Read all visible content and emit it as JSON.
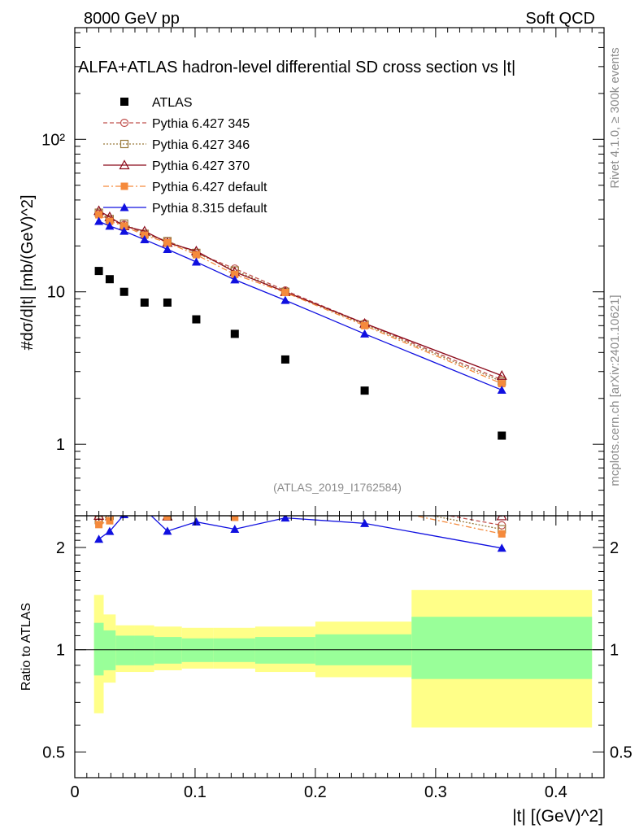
{
  "header": {
    "left": "8000 GeV pp",
    "right": "Soft QCD"
  },
  "side": {
    "rivet": "Rivet 4.1.0, ≥ 300k events",
    "mcplots": "mcplots.cern.ch [arXiv:2401.10621]"
  },
  "chart_data": {
    "type": "scatter",
    "title": "ALFA+ATLAS hadron-level differential SD cross section vs |t|",
    "analysis_tag": "(ATLAS_2019_I1762584)",
    "ylabel_main": "#dσ/d|t| [mb/(GeV)^2]",
    "ylabel_ratio": "Ratio to ATLAS",
    "xlabel": "|t| [(GeV)^2]",
    "xlim": [
      0,
      0.44
    ],
    "ylim_main": [
      0.34,
      540
    ],
    "ylim_ratio": [
      0.42,
      2.48
    ],
    "yscale": "log",
    "x_ticks": [
      "0",
      "0.1",
      "0.2",
      "0.3",
      "0.4"
    ],
    "y_ticks_main": [
      "1",
      "10",
      "10²"
    ],
    "y_ticks_ratio": [
      "0.5",
      "1",
      "2"
    ],
    "x": [
      0.02,
      0.029,
      0.041,
      0.058,
      0.077,
      0.101,
      0.133,
      0.175,
      0.241,
      0.355
    ],
    "data": {
      "name": "ATLAS",
      "values": [
        13.7,
        12.1,
        10.0,
        8.5,
        8.5,
        6.6,
        5.3,
        3.6,
        2.25,
        1.14
      ],
      "bins": [
        {
          "lo": 0.016,
          "hi": 0.024,
          "stat": [
            0.84,
            1.2
          ],
          "tot": [
            0.65,
            1.45
          ]
        },
        {
          "lo": 0.024,
          "hi": 0.034,
          "stat": [
            0.87,
            1.14
          ],
          "tot": [
            0.8,
            1.27
          ]
        },
        {
          "lo": 0.034,
          "hi": 0.05,
          "stat": [
            0.9,
            1.1
          ],
          "tot": [
            0.86,
            1.18
          ]
        },
        {
          "lo": 0.05,
          "hi": 0.066,
          "stat": [
            0.9,
            1.1
          ],
          "tot": [
            0.86,
            1.18
          ]
        },
        {
          "lo": 0.066,
          "hi": 0.089,
          "stat": [
            0.91,
            1.09
          ],
          "tot": [
            0.87,
            1.17
          ]
        },
        {
          "lo": 0.089,
          "hi": 0.115,
          "stat": [
            0.92,
            1.08
          ],
          "tot": [
            0.88,
            1.16
          ]
        },
        {
          "lo": 0.115,
          "hi": 0.15,
          "stat": [
            0.92,
            1.08
          ],
          "tot": [
            0.88,
            1.16
          ]
        },
        {
          "lo": 0.15,
          "hi": 0.2,
          "stat": [
            0.91,
            1.09
          ],
          "tot": [
            0.86,
            1.17
          ]
        },
        {
          "lo": 0.2,
          "hi": 0.28,
          "stat": [
            0.9,
            1.11
          ],
          "tot": [
            0.83,
            1.21
          ]
        },
        {
          "lo": 0.28,
          "hi": 0.43,
          "stat": [
            0.82,
            1.25
          ],
          "tot": [
            0.59,
            1.5
          ]
        }
      ]
    },
    "series": [
      {
        "name": "Pythia 6.427 345",
        "color": "#c0504d",
        "dash": "5,3",
        "marker": "circle-open",
        "values": [
          32.5,
          29.5,
          27.5,
          24.0,
          21.5,
          18.0,
          14.2,
          10.2,
          6.2,
          2.65
        ]
      },
      {
        "name": "Pythia 6.427 346",
        "color": "#9a7a3c",
        "dash": "2,2",
        "marker": "square-open",
        "values": [
          33.0,
          30.0,
          28.0,
          24.0,
          21.5,
          18.0,
          13.8,
          10.0,
          6.1,
          2.58
        ]
      },
      {
        "name": "Pythia 6.427 370",
        "color": "#8b0a1a",
        "dash": "",
        "marker": "triangle-open",
        "values": [
          34.0,
          31.0,
          27.0,
          25.0,
          21.0,
          18.5,
          13.5,
          10.0,
          6.2,
          2.82
        ]
      },
      {
        "name": "Pythia 6.427 default",
        "color": "#f58a3c",
        "dash": "7,3,2,3",
        "marker": "square-filled",
        "values": [
          32.0,
          29.0,
          27.0,
          23.5,
          21.0,
          17.5,
          13.0,
          9.9,
          6.0,
          2.5
        ]
      },
      {
        "name": "Pythia 8.315 default",
        "color": "#1010e0",
        "dash": "",
        "marker": "triangle-filled",
        "values": [
          29.0,
          27.0,
          25.0,
          22.0,
          19.0,
          15.7,
          12.0,
          8.8,
          5.3,
          2.27
        ]
      }
    ]
  }
}
